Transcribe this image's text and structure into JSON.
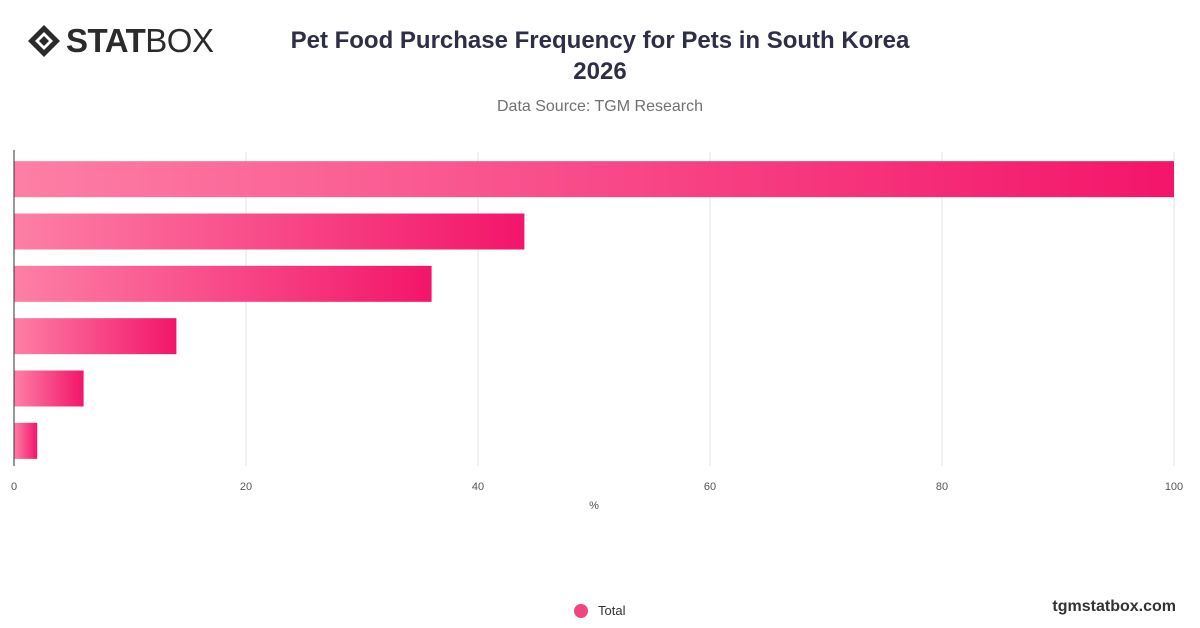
{
  "logo": {
    "bold": "STAT",
    "light": "BOX"
  },
  "header": {
    "title_line1": "Pet Food Purchase Frequency for Pets in South Korea",
    "title_line2": "2026",
    "subtitle": "Data Source: TGM Research"
  },
  "chart_data": {
    "type": "bar",
    "orientation": "horizontal",
    "categories": [
      "",
      "",
      "",
      "",
      "",
      ""
    ],
    "series": [
      {
        "name": "Total",
        "values": [
          100,
          44,
          36,
          14,
          6,
          2
        ]
      }
    ],
    "xlabel": "%",
    "xlim": [
      0,
      100
    ],
    "xticks": [
      0,
      20,
      40,
      60,
      80,
      100
    ],
    "grid": true,
    "legend": "bottom-center",
    "bar_gradient": [
      "#fd7fa6",
      "#f3156a"
    ],
    "colors": {
      "grid": "#e3e3e3",
      "axis": "#333333",
      "tick_text": "#555555"
    }
  },
  "legend": {
    "label": "Total",
    "color": "#f0457e"
  },
  "watermark": "tgmstatbox.com"
}
